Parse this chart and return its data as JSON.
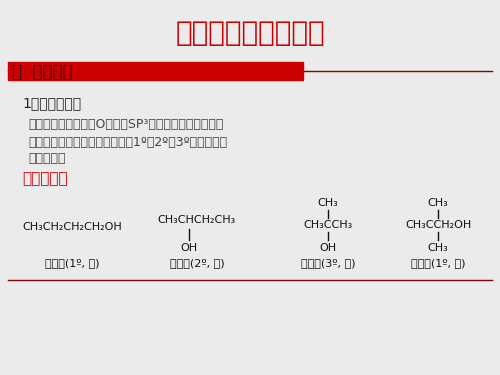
{
  "title": "第十章：醇、醚、酚",
  "title_color": "#CC0000",
  "title_fontsize": 20,
  "section_title": "第  一节：醇",
  "section_fontsize": 12,
  "bg_color": "#EBEBEB",
  "header_bar_color": "#CC0000",
  "body_text_1": "1、结构与命名",
  "body_text_2": "醇的官能团为羟基，O原子为SP³杂化，分子极性较强，",
  "body_text_3": "按羟基所连接的烷基可以分类为1º、2º、3º级醇（伯、",
  "body_text_4": "仲、叔）。",
  "common_name_label": "普通命名：",
  "common_name_color": "#CC0000",
  "mol1_main": "CH₃CH₂CH₂CH₂OH",
  "mol1_name": "正丁醇(1º, 伯)",
  "mol2_main": "CH₃CHCH₂CH₃",
  "mol2_sub": "OH",
  "mol2_name": "仲丁醇(2º, 仲)",
  "mol3_top": "CH₃",
  "mol3_main": "CH₃CCH₃",
  "mol3_sub": "OH",
  "mol3_name": "叔丁醇(3º, 叔)",
  "mol4_top": "CH₃",
  "mol4_main": "CH₃CCH₂OH",
  "mol4_sub": "CH₃",
  "mol4_name": "新戊醇(1º, 伯)"
}
